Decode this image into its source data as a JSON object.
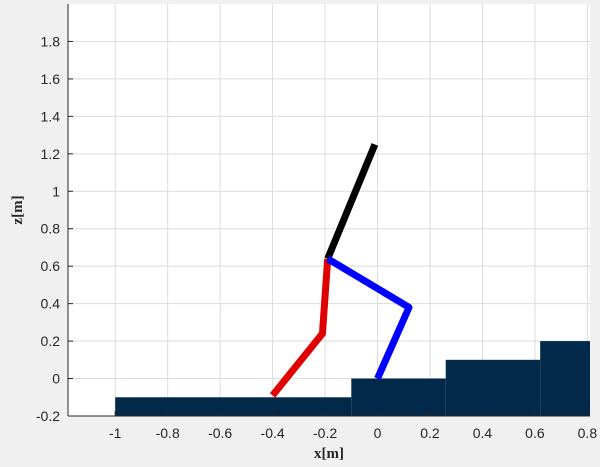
{
  "chart_data": {
    "type": "line",
    "xlabel": "x[m]",
    "ylabel": "z[m]",
    "xlim": [
      -1.18,
      0.81
    ],
    "ylim": [
      -0.2,
      2.0
    ],
    "grid": true,
    "xticks": [
      "-1",
      "-0.8",
      "-0.6",
      "-0.4",
      "-0.2",
      "0",
      "0.2",
      "0.4",
      "0.6",
      "0.8"
    ],
    "xtick_values": [
      -1,
      -0.8,
      -0.6,
      -0.4,
      -0.2,
      0,
      0.2,
      0.4,
      0.6,
      0.8
    ],
    "yticks": [
      "-0.2",
      "0",
      "0.2",
      "0.4",
      "0.6",
      "0.8",
      "1",
      "1.2",
      "1.4",
      "1.6",
      "1.8"
    ],
    "ytick_values": [
      -0.2,
      0,
      0.2,
      0.4,
      0.6,
      0.8,
      1.0,
      1.2,
      1.4,
      1.6,
      1.8
    ],
    "terrain": {
      "color": "#03294a",
      "blocks": [
        {
          "x0": -1.0,
          "x1": -0.1,
          "top": -0.1
        },
        {
          "x0": -0.1,
          "x1": 0.26,
          "top": 0.0
        },
        {
          "x0": 0.26,
          "x1": 0.62,
          "top": 0.1
        },
        {
          "x0": 0.62,
          "x1": 0.81,
          "top": 0.2
        }
      ]
    },
    "series": [
      {
        "color": "#000000",
        "points": [
          [
            -0.19,
            0.64
          ],
          [
            -0.01,
            1.25
          ]
        ]
      },
      {
        "color": "#e00000",
        "points": [
          [
            -0.4,
            -0.09
          ],
          [
            -0.21,
            0.24
          ],
          [
            -0.19,
            0.64
          ]
        ]
      },
      {
        "color": "#0000ff",
        "points": [
          [
            -0.19,
            0.64
          ],
          [
            0.12,
            0.38
          ],
          [
            0.0,
            0.0
          ]
        ]
      }
    ]
  }
}
